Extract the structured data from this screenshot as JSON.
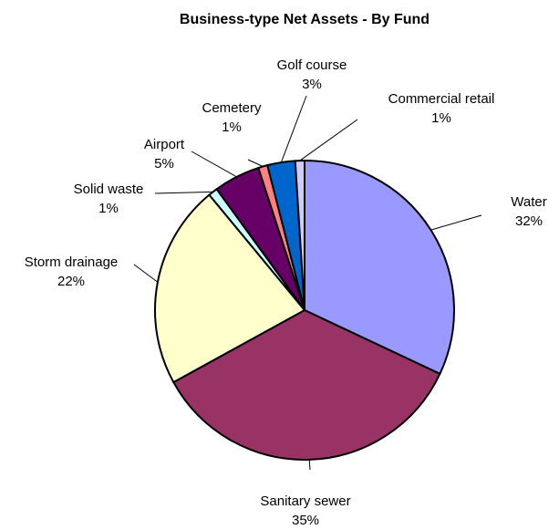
{
  "chart_data": {
    "type": "pie",
    "title": "Business-type Net Assets - By Fund",
    "slices": [
      {
        "name": "Water",
        "value": 32,
        "label": "32%",
        "color": "#9999ff"
      },
      {
        "name": "Sanitary sewer",
        "value": 35,
        "label": "35%",
        "color": "#993366"
      },
      {
        "name": "Storm drainage",
        "value": 22,
        "label": "22%",
        "color": "#ffffcc"
      },
      {
        "name": "Solid waste",
        "value": 1,
        "label": "1%",
        "color": "#ccffff"
      },
      {
        "name": "Airport",
        "value": 5,
        "label": "5%",
        "color": "#660066"
      },
      {
        "name": "Cemetery",
        "value": 1,
        "label": "1%",
        "color": "#ff8080"
      },
      {
        "name": "Golf course",
        "value": 3,
        "label": "3%",
        "color": "#0066cc"
      },
      {
        "name": "Commercial retail",
        "value": 1,
        "label": "1%",
        "color": "#ccccff"
      }
    ]
  }
}
